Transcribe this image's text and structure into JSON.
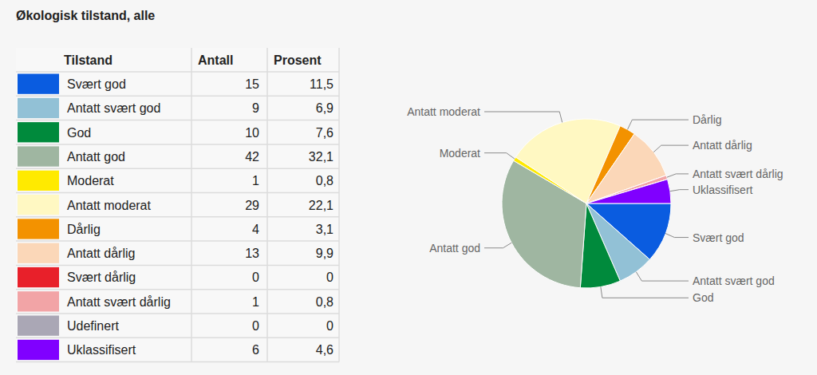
{
  "chart_data": {
    "type": "pie",
    "title": "Økologisk tilstand, alle",
    "xlabel": "Tilstand",
    "categories": [
      "Svært god",
      "Antatt svært god",
      "God",
      "Antatt god",
      "Moderat",
      "Antatt moderat",
      "Dårlig",
      "Antatt dårlig",
      "Svært dårlig",
      "Antatt svært dårlig",
      "Udefinert",
      "Uklassifisert"
    ],
    "colors": [
      "#0a5ce0",
      "#92c1d6",
      "#008a3c",
      "#9fb6a1",
      "#ffea00",
      "#fff8c2",
      "#f39200",
      "#fbd7b8",
      "#e8202a",
      "#f2a4a6",
      "#aaa7b5",
      "#8000ff"
    ],
    "series": [
      {
        "name": "Antall",
        "values": [
          15,
          9,
          10,
          42,
          1,
          29,
          4,
          13,
          0,
          1,
          0,
          6
        ]
      },
      {
        "name": "Prosent",
        "values": [
          11.5,
          6.9,
          7.6,
          32.1,
          0.8,
          22.1,
          3.1,
          9.9,
          0,
          0.8,
          0,
          4.6
        ],
        "value_labels": [
          "11,5",
          "6,9",
          "7,6",
          "32,1",
          "0,8",
          "22,1",
          "3,1",
          "9,9",
          "0",
          "0,8",
          "0",
          "4,6"
        ]
      }
    ]
  }
}
